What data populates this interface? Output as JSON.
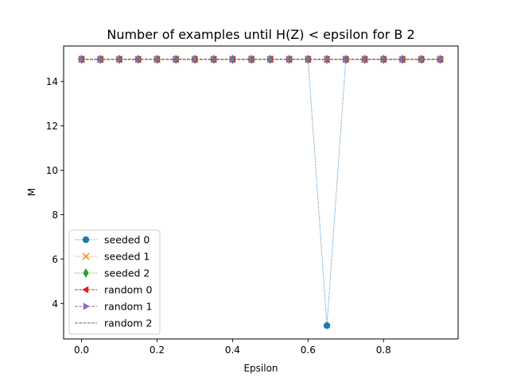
{
  "chart_data": {
    "type": "line",
    "title": "Number of examples until H(Z) < epsilon for B 2",
    "xlabel": "Epsilon",
    "ylabel": "M",
    "xlim": [
      -0.0475,
      0.9975
    ],
    "ylim": [
      2.4,
      15.6
    ],
    "xticks": [
      0.0,
      0.2,
      0.4,
      0.6,
      0.8
    ],
    "yticks": [
      4,
      6,
      8,
      10,
      12,
      14
    ],
    "grid": false,
    "legend_position": "lower-left",
    "x": [
      0.0,
      0.05,
      0.1,
      0.15,
      0.2,
      0.25,
      0.3,
      0.35,
      0.4,
      0.45,
      0.5,
      0.55,
      0.6,
      0.65,
      0.7,
      0.75,
      0.8,
      0.85,
      0.9,
      0.95
    ],
    "series": [
      {
        "name": "seeded 0",
        "color": "#1f77b4",
        "marker": "circle",
        "line": "dotted",
        "values": [
          15,
          15,
          15,
          15,
          15,
          15,
          15,
          15,
          15,
          15,
          15,
          15,
          15,
          3,
          15,
          15,
          15,
          15,
          15,
          15
        ]
      },
      {
        "name": "seeded 1",
        "color": "#ff7f0e",
        "marker": "x",
        "line": "dotted",
        "values": [
          15,
          15,
          15,
          15,
          15,
          15,
          15,
          15,
          15,
          15,
          15,
          15,
          15,
          15,
          15,
          15,
          15,
          15,
          15,
          15
        ]
      },
      {
        "name": "seeded 2",
        "color": "#2ca02c",
        "marker": "thin-diamond",
        "line": "dotted",
        "values": [
          15,
          15,
          15,
          15,
          15,
          15,
          15,
          15,
          15,
          15,
          15,
          15,
          15,
          15,
          15,
          15,
          15,
          15,
          15,
          15
        ]
      },
      {
        "name": "random 0",
        "color": "#d62728",
        "marker": "triangle-left",
        "line": "dashed",
        "values": [
          15,
          15,
          15,
          15,
          15,
          15,
          15,
          15,
          15,
          15,
          15,
          15,
          15,
          15,
          15,
          15,
          15,
          15,
          15,
          15
        ]
      },
      {
        "name": "random 1",
        "color": "#9467bd",
        "marker": "triangle-right",
        "line": "dashed",
        "values": [
          15,
          15,
          15,
          15,
          15,
          15,
          15,
          15,
          15,
          15,
          15,
          15,
          15,
          15,
          15,
          15,
          15,
          15,
          15,
          15
        ]
      },
      {
        "name": "random 2",
        "color": "#8c564b",
        "marker": "none",
        "line": "dashed",
        "values": [
          15,
          15,
          15,
          15,
          15,
          15,
          15,
          15,
          15,
          15,
          15,
          15,
          15,
          15,
          15,
          15,
          15,
          15,
          15,
          15
        ]
      }
    ]
  }
}
